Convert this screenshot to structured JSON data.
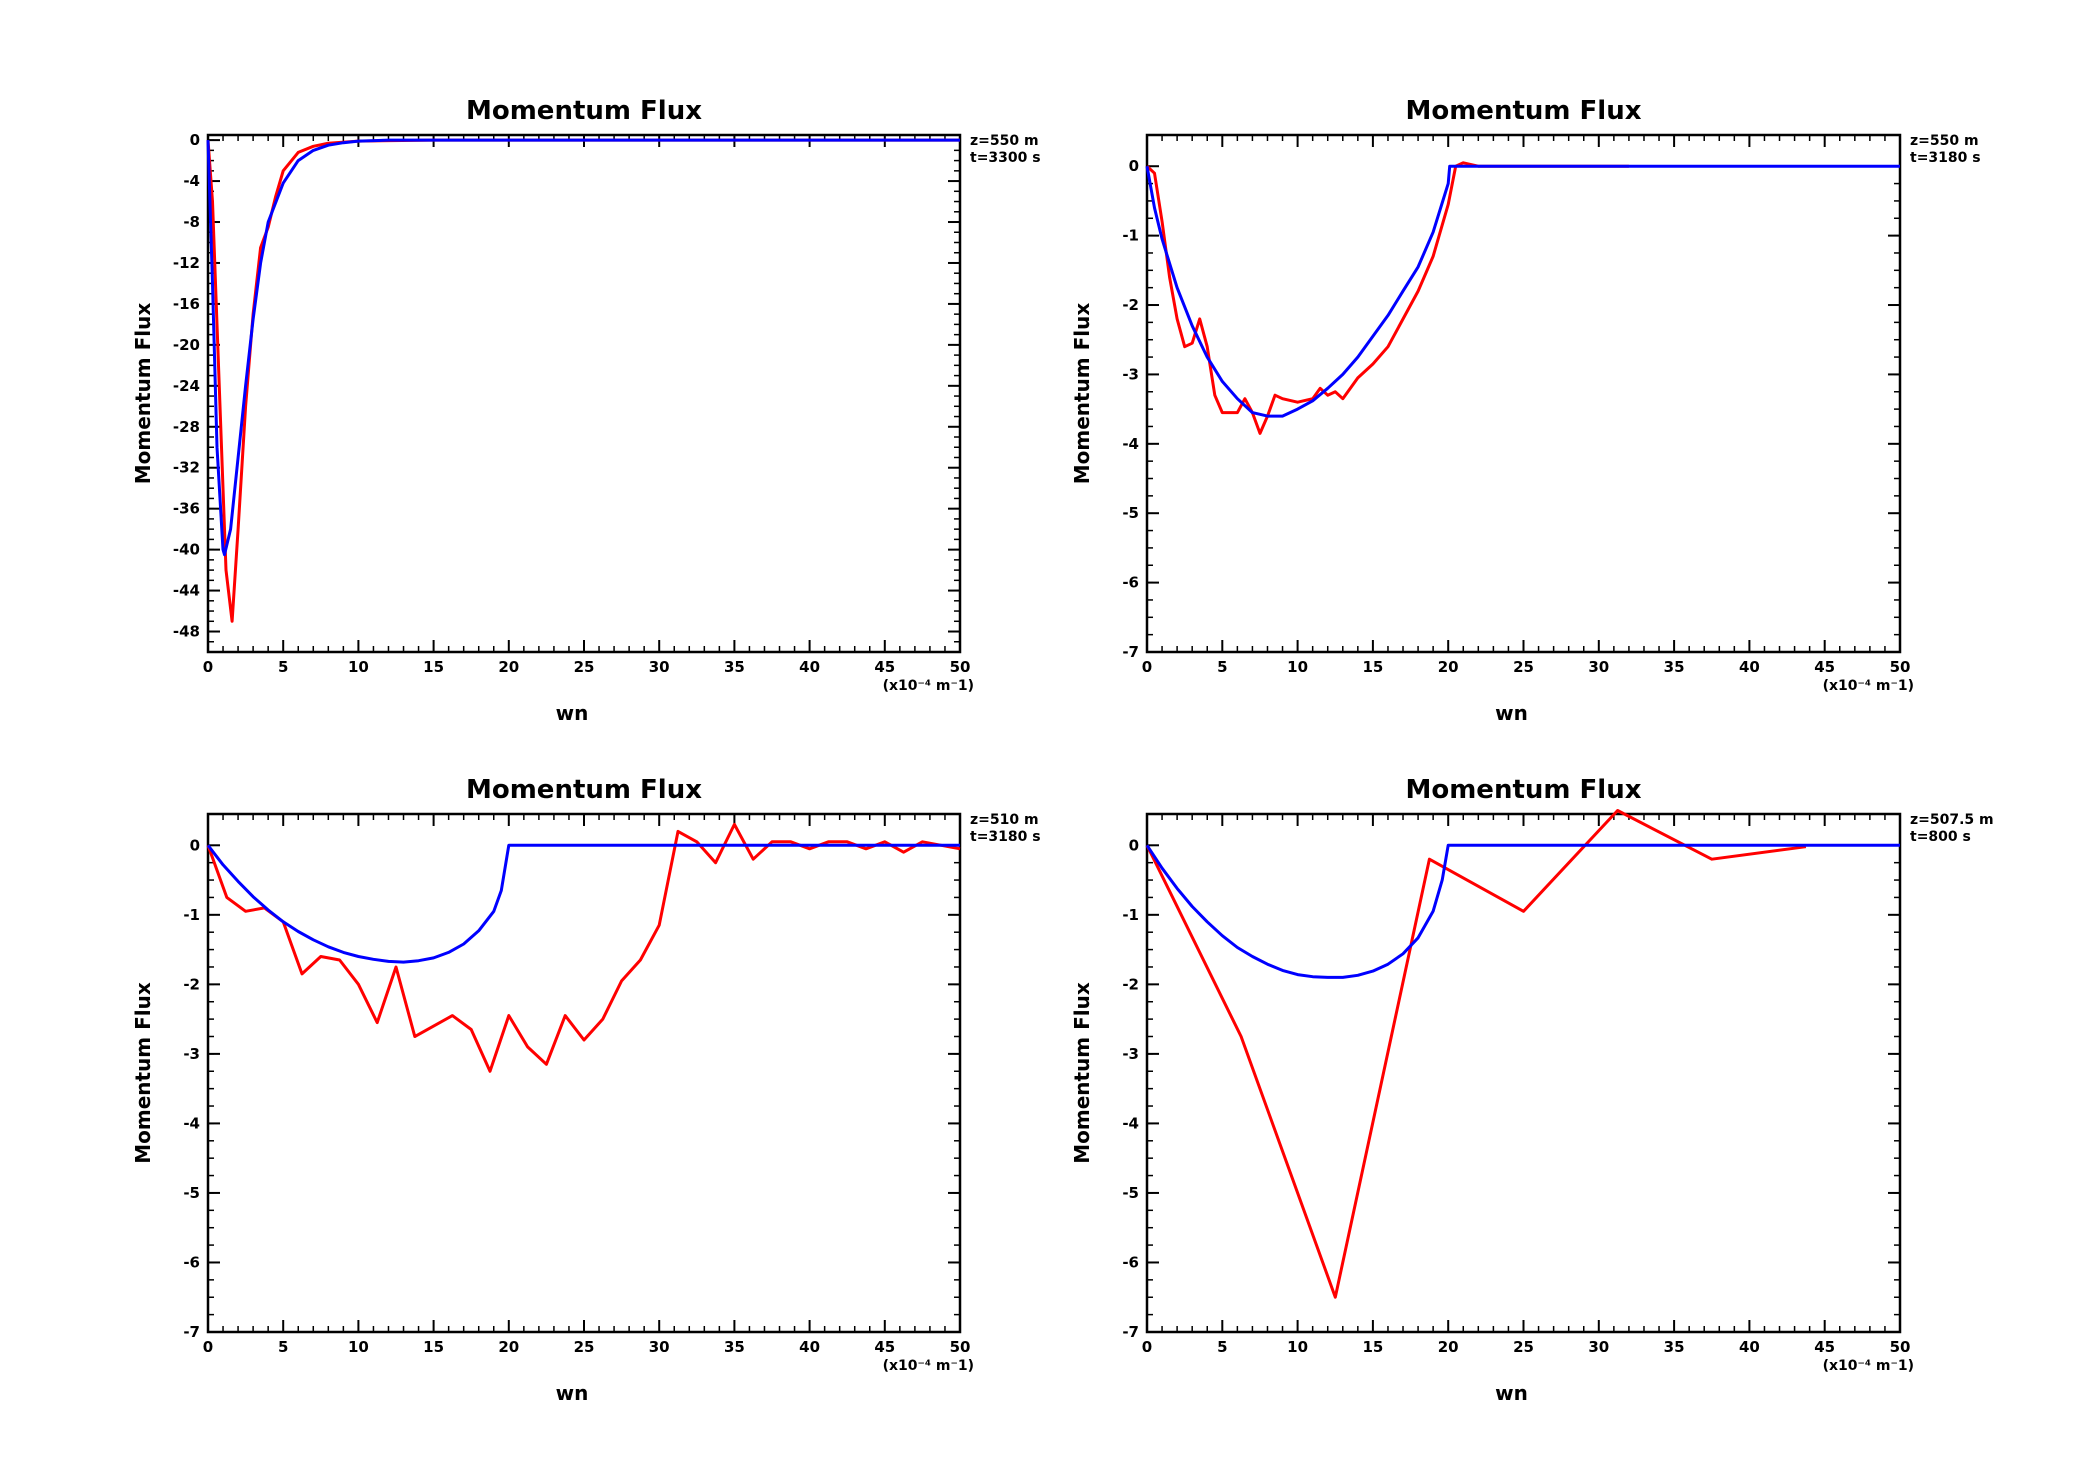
{
  "colors": {
    "observed": "#ff0000",
    "model": "#0000ff",
    "axes": "#000000"
  },
  "chart_data": [
    {
      "type": "line",
      "title": "Momentum Flux",
      "xlabel": "wn",
      "ylabel": "Momentum Flux",
      "x_unit_label": "(x10⁻⁴ m⁻1)",
      "annotation_lines": [
        "z=550 m",
        "t=3300 s"
      ],
      "xlim": [
        0,
        50
      ],
      "ylim": [
        -50,
        0.5
      ],
      "xticks": [
        0,
        5,
        10,
        15,
        20,
        25,
        30,
        35,
        40,
        45,
        50
      ],
      "xtick_labels": [
        "0",
        "5",
        "10",
        "15",
        "20",
        "25",
        "30",
        "35",
        "40",
        "45",
        "50"
      ],
      "yticks": [
        0,
        -4,
        -8,
        -12,
        -16,
        -20,
        -24,
        -28,
        -32,
        -36,
        -40,
        -44,
        -48
      ],
      "ytick_labels": [
        "0",
        "-4",
        "-8",
        "-12",
        "-16",
        "-20",
        "-24",
        "-28",
        "-32",
        "-36",
        "-40",
        "-44",
        "-48"
      ],
      "grid": false,
      "series": [
        {
          "color": "#ff0000",
          "x": [
            0,
            0.3,
            0.6,
            0.9,
            1.2,
            1.6,
            2.0,
            2.5,
            3.0,
            3.5,
            4.0,
            4.5,
            5.0,
            6.0,
            7.0,
            8.0,
            10,
            15,
            20,
            30,
            40,
            50
          ],
          "y": [
            0,
            -6,
            -18,
            -30,
            -42,
            -47,
            -38,
            -26,
            -17,
            -10.5,
            -8.5,
            -5.5,
            -3,
            -1.2,
            -0.6,
            -0.3,
            -0.1,
            0,
            0,
            0,
            0,
            0
          ]
        },
        {
          "color": "#0000ff",
          "x": [
            0,
            0.3,
            0.6,
            1.0,
            1.1,
            1.5,
            2.0,
            2.5,
            3.0,
            3.5,
            4.0,
            5.0,
            6.0,
            7.0,
            8.0,
            9.0,
            10,
            12,
            15,
            20,
            30,
            40,
            50
          ],
          "y": [
            0,
            -14,
            -30,
            -40,
            -40.5,
            -38,
            -31,
            -24,
            -17.5,
            -12,
            -8,
            -4.2,
            -2,
            -1,
            -0.5,
            -0.25,
            -0.1,
            0,
            0,
            0,
            0,
            0,
            0
          ]
        }
      ]
    },
    {
      "type": "line",
      "title": "Momentum Flux",
      "xlabel": "wn",
      "ylabel": "Momentum Flux",
      "x_unit_label": "(x10⁻⁴ m⁻1)",
      "annotation_lines": [
        "z=550 m",
        "t=3180 s"
      ],
      "xlim": [
        0,
        50
      ],
      "ylim": [
        -7,
        0.45
      ],
      "xticks": [
        0,
        5,
        10,
        15,
        20,
        25,
        30,
        35,
        40,
        45,
        50
      ],
      "xtick_labels": [
        "0",
        "5",
        "10",
        "15",
        "20",
        "25",
        "30",
        "35",
        "40",
        "45",
        "50"
      ],
      "yticks": [
        0,
        -1,
        -2,
        -3,
        -4,
        -5,
        -6,
        -7
      ],
      "ytick_labels": [
        "0",
        "-1",
        "-2",
        "-3",
        "-4",
        "-5",
        "-6",
        "-7"
      ],
      "grid": false,
      "series": [
        {
          "color": "#ff0000",
          "x": [
            0,
            0.5,
            1.0,
            1.5,
            2.0,
            2.5,
            3.0,
            3.5,
            4.0,
            4.5,
            5.0,
            6.0,
            6.5,
            7.0,
            7.5,
            8.0,
            8.5,
            9.0,
            10.0,
            11.0,
            11.5,
            12.0,
            12.5,
            13.0,
            14.0,
            15.0,
            16.0,
            18.0,
            19.0,
            20.0,
            20.5,
            21.0,
            22.0,
            25.0,
            30.0,
            32.0
          ],
          "y": [
            0,
            -0.1,
            -0.8,
            -1.6,
            -2.2,
            -2.6,
            -2.55,
            -2.2,
            -2.6,
            -3.3,
            -3.55,
            -3.55,
            -3.35,
            -3.55,
            -3.85,
            -3.6,
            -3.3,
            -3.35,
            -3.4,
            -3.35,
            -3.2,
            -3.3,
            -3.25,
            -3.35,
            -3.05,
            -2.85,
            -2.6,
            -1.8,
            -1.3,
            -0.55,
            0,
            0.05,
            0,
            0,
            0,
            0
          ]
        },
        {
          "color": "#0000ff",
          "x": [
            0,
            0.5,
            1,
            2,
            3,
            4,
            5,
            6,
            7,
            8,
            9,
            10,
            11,
            12,
            13,
            14,
            15,
            16,
            17,
            18,
            19,
            20,
            20.1,
            25,
            30,
            35,
            40,
            45,
            50
          ],
          "y": [
            0,
            -0.6,
            -1.05,
            -1.75,
            -2.3,
            -2.75,
            -3.1,
            -3.35,
            -3.55,
            -3.6,
            -3.6,
            -3.5,
            -3.38,
            -3.2,
            -3.0,
            -2.75,
            -2.45,
            -2.15,
            -1.8,
            -1.45,
            -0.95,
            -0.25,
            0,
            0,
            0,
            0,
            0,
            0,
            0
          ]
        }
      ]
    },
    {
      "type": "line",
      "title": "Momentum Flux",
      "xlabel": "wn",
      "ylabel": "Momentum Flux",
      "x_unit_label": "(x10⁻⁴ m⁻1)",
      "annotation_lines": [
        "z=510 m",
        "t=3180 s"
      ],
      "xlim": [
        0,
        50
      ],
      "ylim": [
        -7,
        0.45
      ],
      "xticks": [
        0,
        5,
        10,
        15,
        20,
        25,
        30,
        35,
        40,
        45,
        50
      ],
      "xtick_labels": [
        "0",
        "5",
        "10",
        "15",
        "20",
        "25",
        "30",
        "35",
        "40",
        "45",
        "50"
      ],
      "yticks": [
        0,
        -1,
        -2,
        -3,
        -4,
        -5,
        -6,
        -7
      ],
      "ytick_labels": [
        "0",
        "-1",
        "-2",
        "-3",
        "-4",
        "-5",
        "-6",
        "-7"
      ],
      "grid": false,
      "series": [
        {
          "color": "#ff0000",
          "x": [
            0,
            1.25,
            2.5,
            3.75,
            5,
            6.25,
            7.5,
            8.75,
            10,
            11.25,
            12.5,
            13.75,
            15,
            16.25,
            17.5,
            18.75,
            20,
            21.25,
            22.5,
            23.75,
            25,
            26.25,
            27.5,
            28.75,
            30,
            31.25,
            32.5,
            33.75,
            35,
            36.25,
            37.5,
            38.75,
            40,
            41.25,
            42.5,
            43.75,
            45,
            46.25,
            47.5,
            48.75,
            50
          ],
          "y": [
            0,
            -0.75,
            -0.95,
            -0.9,
            -1.1,
            -1.85,
            -1.6,
            -1.65,
            -2.0,
            -2.55,
            -1.75,
            -2.75,
            -2.6,
            -2.45,
            -2.65,
            -3.25,
            -2.45,
            -2.9,
            -3.15,
            -2.45,
            -2.8,
            -2.5,
            -1.95,
            -1.65,
            -1.15,
            0.2,
            0.05,
            -0.25,
            0.3,
            -0.2,
            0.05,
            0.05,
            -0.05,
            0.05,
            0.05,
            -0.05,
            0.05,
            -0.1,
            0.05,
            0.0,
            -0.05
          ]
        },
        {
          "color": "#0000ff",
          "x": [
            0,
            1,
            2,
            3,
            4,
            5,
            6,
            7,
            8,
            9,
            10,
            11,
            12,
            13,
            14,
            15,
            16,
            17,
            18,
            19,
            19.5,
            20,
            25,
            30,
            35,
            40,
            45,
            50
          ],
          "y": [
            0,
            -0.28,
            -0.52,
            -0.74,
            -0.93,
            -1.1,
            -1.24,
            -1.36,
            -1.46,
            -1.54,
            -1.6,
            -1.64,
            -1.67,
            -1.68,
            -1.66,
            -1.62,
            -1.54,
            -1.42,
            -1.23,
            -0.95,
            -0.65,
            0,
            0,
            0,
            0,
            0,
            0,
            0
          ]
        }
      ]
    },
    {
      "type": "line",
      "title": "Momentum Flux",
      "xlabel": "wn",
      "ylabel": "Momentum Flux",
      "x_unit_label": "(x10⁻⁴ m⁻1)",
      "annotation_lines": [
        "z=507.5 m",
        "t=800 s"
      ],
      "xlim": [
        0,
        50
      ],
      "ylim": [
        -7,
        0.45
      ],
      "xticks": [
        0,
        5,
        10,
        15,
        20,
        25,
        30,
        35,
        40,
        45,
        50
      ],
      "xtick_labels": [
        "0",
        "5",
        "10",
        "15",
        "20",
        "25",
        "30",
        "35",
        "40",
        "45",
        "50"
      ],
      "yticks": [
        0,
        -1,
        -2,
        -3,
        -4,
        -5,
        -6,
        -7
      ],
      "ytick_labels": [
        "0",
        "-1",
        "-2",
        "-3",
        "-4",
        "-5",
        "-6",
        "-7"
      ],
      "grid": false,
      "series": [
        {
          "color": "#ff0000",
          "x": [
            0,
            6.25,
            12.5,
            18.75,
            25,
            31.25,
            37.5,
            43.75
          ],
          "y": [
            0,
            -2.75,
            -6.5,
            -0.2,
            -0.95,
            0.5,
            -0.2,
            -0.02
          ]
        },
        {
          "color": "#0000ff",
          "x": [
            0,
            1,
            2,
            3,
            4,
            5,
            6,
            7,
            8,
            9,
            10,
            11,
            12,
            13,
            14,
            15,
            16,
            17,
            18,
            19,
            19.6,
            20,
            25,
            30,
            35,
            40,
            45,
            50
          ],
          "y": [
            0,
            -0.33,
            -0.62,
            -0.88,
            -1.1,
            -1.3,
            -1.47,
            -1.6,
            -1.71,
            -1.8,
            -1.86,
            -1.89,
            -1.9,
            -1.9,
            -1.87,
            -1.81,
            -1.71,
            -1.56,
            -1.33,
            -0.95,
            -0.5,
            0,
            0,
            0,
            0,
            0,
            0,
            0
          ]
        }
      ]
    }
  ]
}
